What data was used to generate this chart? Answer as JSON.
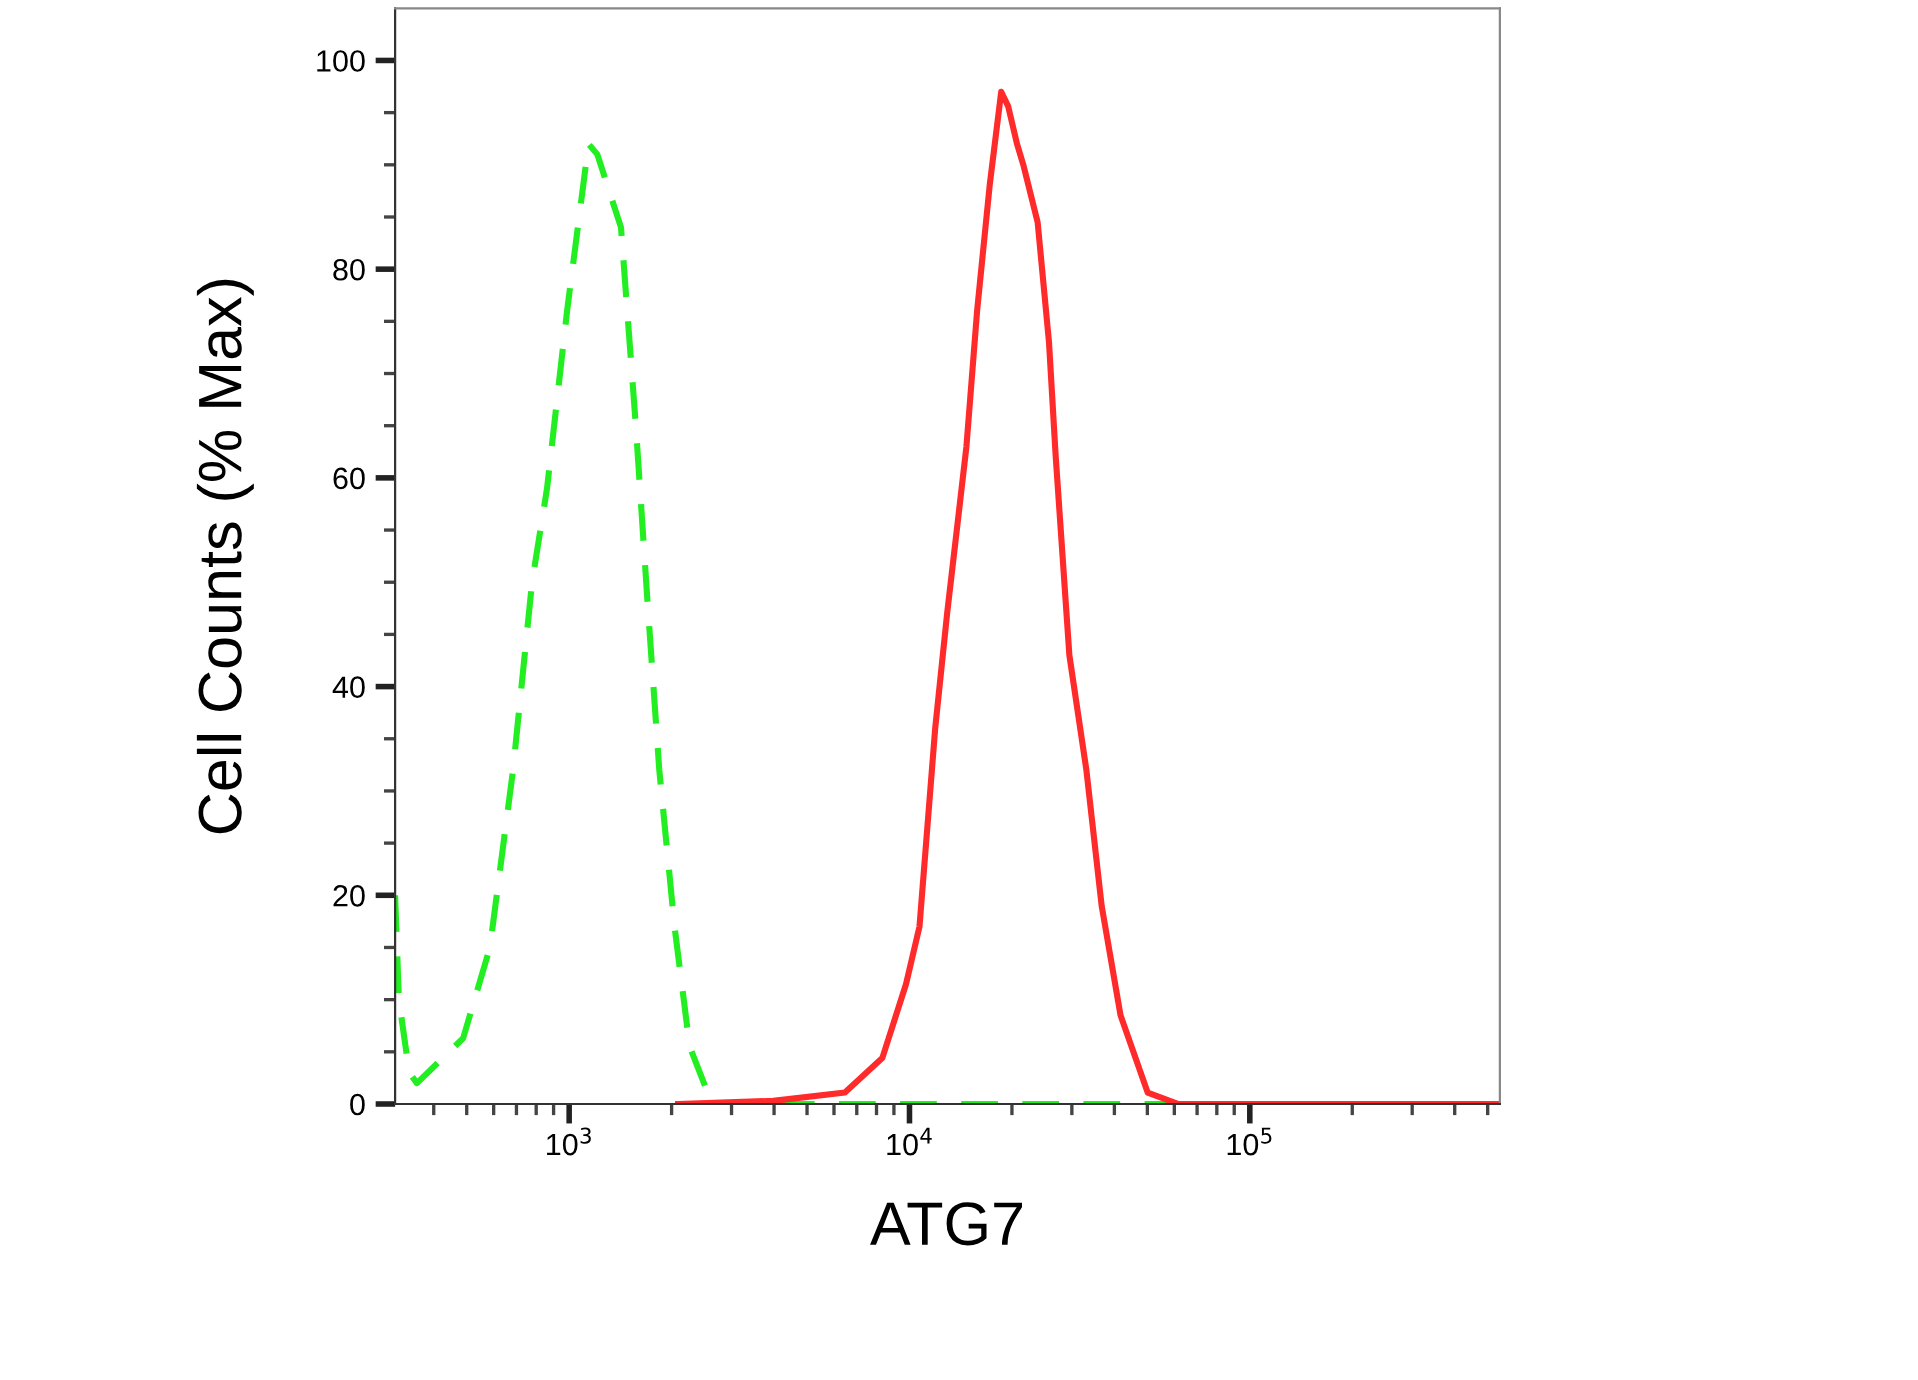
{
  "chart_data": {
    "type": "line",
    "xlabel": "ATG7",
    "ylabel": "Cell Counts (% Max)",
    "log": "x",
    "xlim": [
      308,
      543000
    ],
    "xticks": [
      {
        "value": 400,
        "label": null
      },
      {
        "value": 500,
        "label": null
      },
      {
        "value": 600,
        "label": null
      },
      {
        "value": 700,
        "label": null
      },
      {
        "value": 800,
        "label": null
      },
      {
        "value": 900,
        "label": null
      },
      {
        "value": 1000,
        "label": "10$^{3}$"
      },
      {
        "value": 2000,
        "label": null
      },
      {
        "value": 3000,
        "label": null
      },
      {
        "value": 4000,
        "label": null
      },
      {
        "value": 5000,
        "label": null
      },
      {
        "value": 6000,
        "label": null
      },
      {
        "value": 7000,
        "label": null
      },
      {
        "value": 8000,
        "label": null
      },
      {
        "value": 9000,
        "label": null
      },
      {
        "value": 10000,
        "label": "10$^{4}$"
      },
      {
        "value": 20000,
        "label": null
      },
      {
        "value": 30000,
        "label": null
      },
      {
        "value": 40000,
        "label": null
      },
      {
        "value": 50000,
        "label": null
      },
      {
        "value": 60000,
        "label": null
      },
      {
        "value": 70000,
        "label": null
      },
      {
        "value": 80000,
        "label": null
      },
      {
        "value": 90000,
        "label": null
      },
      {
        "value": 100000,
        "label": "10$^{5}$"
      },
      {
        "value": 200000,
        "label": null
      },
      {
        "value": 300000,
        "label": null
      },
      {
        "value": 400000,
        "label": null
      },
      {
        "value": 500000,
        "label": null
      }
    ],
    "ylim": [
      0,
      105
    ],
    "yticks": [
      0,
      {
        "value": 5,
        "label": null
      },
      {
        "value": 10,
        "label": null
      },
      {
        "value": 15,
        "label": null
      },
      20,
      {
        "value": 25,
        "label": null
      },
      {
        "value": 30,
        "label": null
      },
      {
        "value": 35,
        "label": null
      },
      40,
      {
        "value": 45,
        "label": null
      },
      {
        "value": 50,
        "label": null
      },
      {
        "value": 55,
        "label": null
      },
      60,
      {
        "value": 65,
        "label": null
      },
      {
        "value": 70,
        "label": null
      },
      {
        "value": 75,
        "label": null
      },
      80,
      {
        "value": 85,
        "label": null
      },
      {
        "value": 90,
        "label": null
      },
      {
        "value": 95,
        "label": null
      },
      100
    ],
    "grid": false,
    "marker": "none",
    "series": [
      {
        "color": "#22ee22",
        "line_style": "dashed",
        "x": [
          308,
          316,
          339,
          357,
          488,
          585,
          684,
          778,
          861,
          986,
          1140,
          1210,
          1420,
          1570,
          1700,
          1840,
          2040,
          2260,
          2630,
          543000
        ],
        "values": [
          20,
          10,
          3,
          2,
          6.3,
          15,
          32,
          50,
          59,
          76,
          92,
          91,
          84,
          65,
          48,
          32,
          17,
          5.5,
          0,
          0
        ]
      },
      {
        "color": "#ff2a2a",
        "line_style": "solid",
        "x": [
          2090,
          3980,
          6460,
          8320,
          9770,
          10700,
          11900,
          12900,
          14000,
          14700,
          15800,
          17200,
          18600,
          19500,
          20700,
          21600,
          23800,
          25700,
          26900,
          29500,
          33100,
          36700,
          41700,
          50100,
          61700,
          543000
        ],
        "values": [
          0,
          0.3,
          1.1,
          4.4,
          11.5,
          17,
          36,
          47,
          57,
          63,
          76,
          88,
          97,
          95.6,
          92,
          90,
          84.5,
          73,
          62,
          43,
          32,
          19,
          8.5,
          1.1,
          0,
          0
        ]
      }
    ]
  }
}
